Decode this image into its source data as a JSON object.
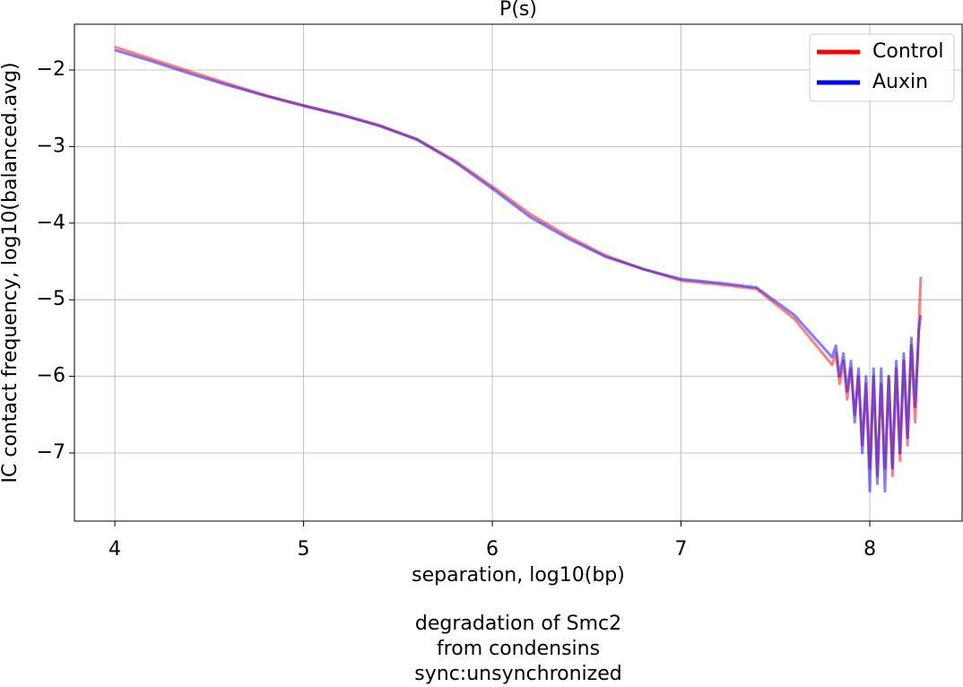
{
  "chart_data": {
    "type": "line",
    "title": "P(s)",
    "xlabel": "separation, log10(bp)",
    "ylabel": "IC contact frequency, log10(balanced.avg)",
    "caption": [
      "degradation of Smc2",
      "from condensins",
      "sync:unsynchronized"
    ],
    "x": [
      4.0,
      4.2,
      4.4,
      4.6,
      4.8,
      5.0,
      5.2,
      5.4,
      5.6,
      5.8,
      6.0,
      6.2,
      6.4,
      6.6,
      6.8,
      7.0,
      7.2,
      7.4,
      7.6,
      7.8,
      7.82,
      7.84,
      7.86,
      7.88,
      7.9,
      7.92,
      7.94,
      7.96,
      7.98,
      8.0,
      8.02,
      8.04,
      8.06,
      8.08,
      8.1,
      8.12,
      8.14,
      8.16,
      8.18,
      8.2,
      8.22,
      8.24,
      8.26,
      8.27
    ],
    "series": [
      {
        "name": "Control",
        "color": "#ff0000",
        "values": [
          -1.7,
          -1.86,
          -2.02,
          -2.18,
          -2.33,
          -2.46,
          -2.58,
          -2.72,
          -2.9,
          -3.18,
          -3.52,
          -3.88,
          -4.17,
          -4.42,
          -4.6,
          -4.75,
          -4.8,
          -4.86,
          -5.25,
          -5.85,
          -5.7,
          -6.1,
          -5.8,
          -6.3,
          -5.9,
          -6.5,
          -6.0,
          -6.9,
          -6.1,
          -7.2,
          -6.0,
          -7.3,
          -6.1,
          -7.2,
          -6.0,
          -7.3,
          -5.9,
          -7.1,
          -5.8,
          -6.9,
          -5.6,
          -6.6,
          -5.3,
          -4.7
        ]
      },
      {
        "name": "Auxin",
        "color": "#0000ff",
        "values": [
          -1.74,
          -1.89,
          -2.05,
          -2.2,
          -2.34,
          -2.47,
          -2.59,
          -2.73,
          -2.91,
          -3.2,
          -3.55,
          -3.92,
          -4.2,
          -4.44,
          -4.6,
          -4.73,
          -4.78,
          -4.84,
          -5.2,
          -5.75,
          -5.6,
          -6.0,
          -5.7,
          -6.2,
          -5.8,
          -6.6,
          -5.9,
          -7.0,
          -6.0,
          -7.5,
          -5.9,
          -7.4,
          -5.9,
          -7.5,
          -6.0,
          -7.2,
          -5.8,
          -7.0,
          -5.7,
          -6.8,
          -5.5,
          -6.4,
          -5.4,
          -5.2
        ]
      }
    ],
    "xlim": [
      3.786,
      8.489
    ],
    "xticks": [
      4,
      5,
      6,
      7,
      8
    ],
    "ylim": [
      -7.89,
      -1.403
    ],
    "yticks": [
      {
        "value": -2,
        "label": "−2"
      },
      {
        "value": -3,
        "label": "−3"
      },
      {
        "value": -4,
        "label": "−4"
      },
      {
        "value": -5,
        "label": "−5"
      },
      {
        "value": -6,
        "label": "−6"
      },
      {
        "value": -7,
        "label": "−7"
      }
    ],
    "grid": true,
    "legend": "upper right"
  }
}
